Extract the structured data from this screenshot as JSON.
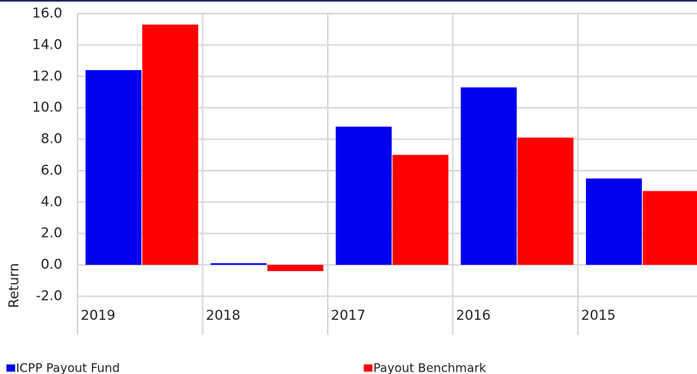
{
  "chart_data": {
    "type": "bar",
    "y_label": "Return",
    "categories": [
      "2019",
      "2018",
      "2017",
      "2016",
      "2015"
    ],
    "series": [
      {
        "name": "ICPP Payout Fund",
        "color": "#0000ee",
        "values": [
          12.4,
          0.1,
          8.8,
          11.3,
          5.5
        ]
      },
      {
        "name": "Payout Benchmark",
        "color": "#ff0000",
        "values": [
          15.3,
          -0.4,
          7.0,
          8.1,
          4.7
        ]
      }
    ],
    "ylim": [
      -2,
      16
    ],
    "yticks": [
      {
        "value": -2,
        "label": "-2.0"
      },
      {
        "value": 0,
        "label": "0.0"
      },
      {
        "value": 2,
        "label": "2.0"
      },
      {
        "value": 4,
        "label": "4.0"
      },
      {
        "value": 6,
        "label": "6.0"
      },
      {
        "value": 8,
        "label": "8.0"
      },
      {
        "value": 10,
        "label": "10.0"
      },
      {
        "value": 12,
        "label": "12.0"
      },
      {
        "value": 14,
        "label": "14.0"
      },
      {
        "value": 16,
        "label": "16.0"
      }
    ],
    "grid": true
  }
}
